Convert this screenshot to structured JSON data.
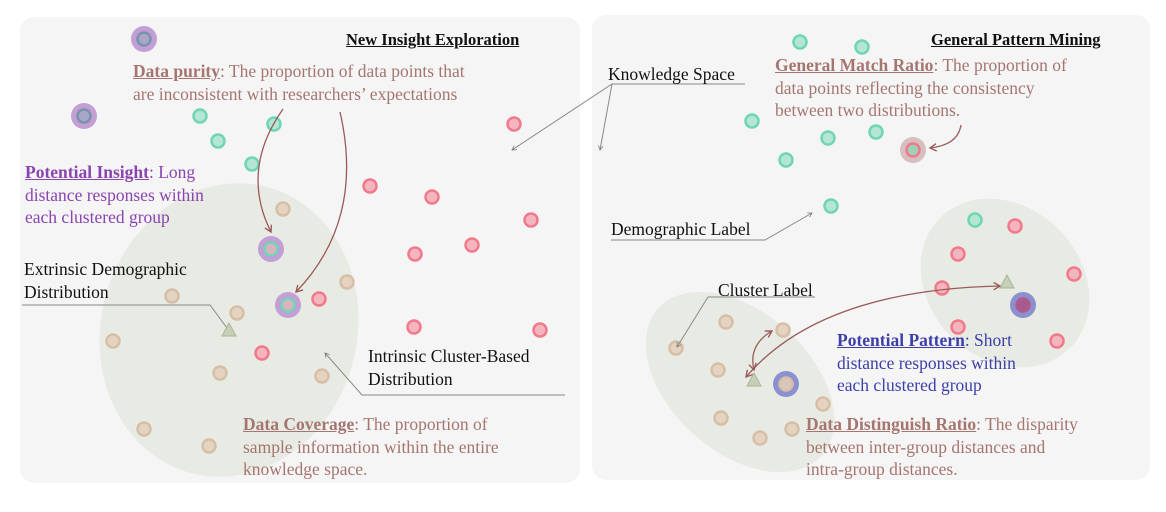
{
  "left_panel": {
    "title": "New Insight Exploration",
    "data_purity": {
      "term": "Data purity",
      "line1": ":  The proportion of data points that",
      "line2": "are inconsistent with researchers’ expectations"
    },
    "potential_insight": {
      "term": "Potential Insight",
      "line1": ": Long",
      "line2": "distance responses within",
      "line3": "each clustered group"
    },
    "extrinsic": {
      "line1": "Extrinsic Demographic",
      "line2": "Distribution"
    },
    "intrinsic": {
      "line1": "Intrinsic Cluster-Based",
      "line2": "Distribution"
    },
    "data_coverage": {
      "term": "Data Coverage",
      "line1": ":  The proportion of",
      "line2": "sample information within the entire",
      "line3": "knowledge space."
    }
  },
  "knowledge_space_label": "Knowledge Space",
  "right_panel": {
    "title": "General Pattern Mining",
    "general_match": {
      "term": "General Match Ratio",
      "line1": ":  The proportion of",
      "line2": "data points reflecting the consistency",
      "line3": "between two distributions."
    },
    "demographic_label": "Demographic Label",
    "cluster_label": "Cluster Label",
    "potential_pattern": {
      "term": "Potential Pattern",
      "line1": ": Short",
      "line2": "distance responses within",
      "line3": "each clustered group"
    },
    "data_distinguish": {
      "term": "Data Distinguish Ratio",
      "line1": ":  The disparity",
      "line2": "between inter-group distances and",
      "line3": "intra-group distances."
    }
  },
  "colors": {
    "panel": "#f5f5f5",
    "cluster": "#e8ebe3",
    "green": "#6fd6b4",
    "red": "#f07a8c",
    "tan": "#d6bfa6",
    "purple": "#c49fd6",
    "blue": "#8c8fd0",
    "arrow": "#9a5a5a"
  }
}
